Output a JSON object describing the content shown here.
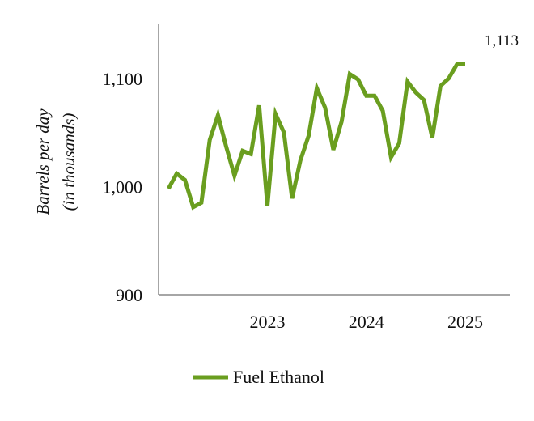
{
  "chart_data": {
    "type": "line",
    "ylabel_line1": "Barrels per day",
    "ylabel_line2": "(in thousands)",
    "ylim": [
      900,
      1150
    ],
    "y_ticks": [
      900,
      1000,
      1100
    ],
    "y_tick_labels": [
      "900",
      "1,000",
      "1,100"
    ],
    "x_ticks": [
      2023,
      2024,
      2025
    ],
    "x_tick_labels": [
      "2023",
      "2024",
      "2025"
    ],
    "x_range": [
      2022.4,
      2025.95
    ],
    "grid": false,
    "legend_position": "bottom",
    "series": [
      {
        "name": "Fuel Ethanol",
        "color": "#6a9e1f",
        "x": [
          2022.5,
          2022.583,
          2022.667,
          2022.75,
          2022.833,
          2022.917,
          2023.0,
          2023.083,
          2023.167,
          2023.25,
          2023.333,
          2023.417,
          2023.5,
          2023.583,
          2023.667,
          2023.75,
          2023.833,
          2023.917,
          2024.0,
          2024.083,
          2024.167,
          2024.25,
          2024.333,
          2024.417,
          2024.5,
          2024.583,
          2024.667,
          2024.75,
          2024.833,
          2024.917,
          2025.0,
          2025.083,
          2025.167,
          2025.25,
          2025.333,
          2025.417,
          2025.5
        ],
        "values": [
          998,
          1012,
          1006,
          981,
          985,
          1043,
          1066,
          1037,
          1010,
          1033,
          1030,
          1075,
          982,
          1067,
          1050,
          989,
          1024,
          1047,
          1091,
          1073,
          1034,
          1060,
          1104,
          1099,
          1084,
          1084,
          1070,
          1027,
          1040,
          1097,
          1087,
          1080,
          1045,
          1093,
          1100,
          1113,
          1113
        ]
      }
    ],
    "annotation": "1,113"
  },
  "legend": {
    "label": "Fuel Ethanol"
  }
}
